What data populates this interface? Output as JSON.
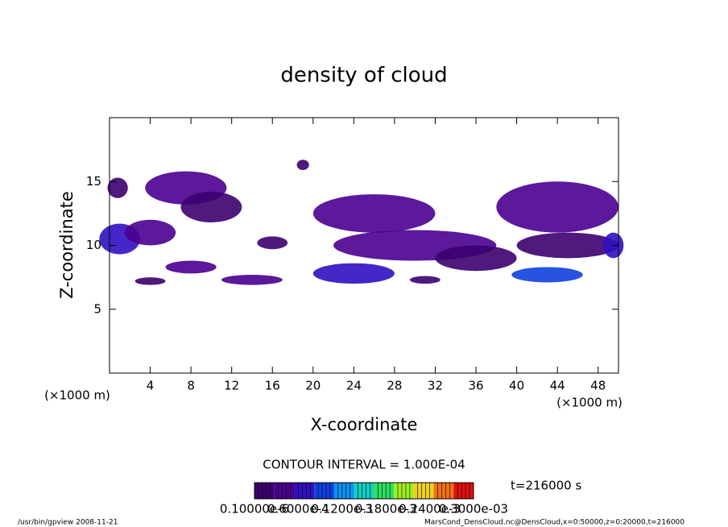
{
  "chart_data": {
    "type": "contour",
    "title": "density of cloud",
    "x_label": "X-coordinate",
    "y_label": "Z-coordinate",
    "x_unit_left": "(×1000 m)",
    "x_unit_right": "(×1000 m)",
    "xlim": [
      0,
      50
    ],
    "ylim": [
      0,
      20
    ],
    "xticks": [
      4,
      8,
      12,
      16,
      20,
      24,
      28,
      32,
      36,
      40,
      44,
      48
    ],
    "yticks": [
      5,
      10,
      15
    ],
    "cells": [
      {
        "x": 1,
        "z": 10.5,
        "rx": 2,
        "rz": 1.2,
        "value": 6e-05
      },
      {
        "x": 4,
        "z": 11,
        "rx": 2.5,
        "rz": 1,
        "value": 5e-05
      },
      {
        "x": 0.8,
        "z": 14.5,
        "rx": 1,
        "rz": 0.8,
        "value": 2e-05
      },
      {
        "x": 7.5,
        "z": 14.5,
        "rx": 4,
        "rz": 1.3,
        "value": 3e-05
      },
      {
        "x": 10,
        "z": 13,
        "rx": 3,
        "rz": 1.2,
        "value": 2e-05
      },
      {
        "x": 8,
        "z": 8.3,
        "rx": 2.5,
        "rz": 0.5,
        "value": 5e-05
      },
      {
        "x": 14,
        "z": 7.3,
        "rx": 3,
        "rz": 0.4,
        "value": 3e-05
      },
      {
        "x": 4,
        "z": 7.2,
        "rx": 1.5,
        "rz": 0.3,
        "value": 2e-05
      },
      {
        "x": 16,
        "z": 10.2,
        "rx": 1.5,
        "rz": 0.5,
        "value": 2e-05
      },
      {
        "x": 19,
        "z": 16.3,
        "rx": 0.6,
        "rz": 0.4,
        "value": 1e-05
      },
      {
        "x": 24,
        "z": 7.8,
        "rx": 4,
        "rz": 0.8,
        "value": 8e-05
      },
      {
        "x": 26,
        "z": 12.5,
        "rx": 6,
        "rz": 1.5,
        "value": 3e-05
      },
      {
        "x": 30,
        "z": 10,
        "rx": 8,
        "rz": 1.2,
        "value": 3e-05
      },
      {
        "x": 36,
        "z": 9,
        "rx": 4,
        "rz": 1,
        "value": 2e-05
      },
      {
        "x": 43,
        "z": 7.7,
        "rx": 3.5,
        "rz": 0.6,
        "value": 9e-05
      },
      {
        "x": 44,
        "z": 13,
        "rx": 6,
        "rz": 2,
        "value": 4e-05
      },
      {
        "x": 45,
        "z": 10,
        "rx": 5,
        "rz": 1,
        "value": 2e-05
      },
      {
        "x": 31,
        "z": 7.3,
        "rx": 1.5,
        "rz": 0.3,
        "value": 2e-05
      },
      {
        "x": 49.5,
        "z": 10,
        "rx": 1,
        "rz": 1,
        "value": 6e-05
      }
    ],
    "contour_interval": "CONTOUR INTERVAL = 1.000E-04",
    "time_label": "t=216000 s",
    "colorbar": {
      "lim": [
        1e-07,
        0.0003
      ],
      "colors": [
        "#3c0070",
        "#4a0090",
        "#3010c0",
        "#1040e0",
        "#1090f0",
        "#10d0c0",
        "#30e060",
        "#a0f020",
        "#f0d020",
        "#f07010",
        "#e01010"
      ],
      "ticks": [
        {
          "value": 1e-07,
          "label": "0.10000e-6"
        },
        {
          "value": 6e-05,
          "label": "0.6000e-4"
        },
        {
          "value": 0.00012,
          "label": "0.1200e-3"
        },
        {
          "value": 0.00018,
          "label": "0.1800e-3"
        },
        {
          "value": 0.00024,
          "label": "0.2400e-3"
        },
        {
          "value": 0.0003,
          "label": "0.3000e-03"
        }
      ]
    },
    "footer_left": "/usr/bin/gpview  2008-11-21",
    "footer_right": "MarsCond_DensCloud.nc@DensCloud,x=0:50000,z=0:20000,t=216000"
  }
}
